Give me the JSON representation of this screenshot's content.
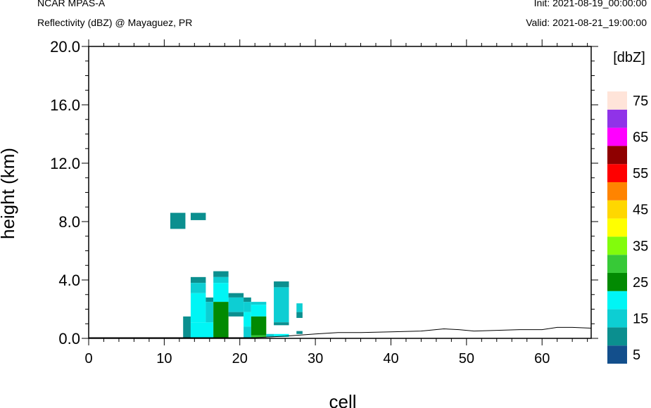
{
  "header": {
    "title": "NCAR MPAS-A",
    "subtitle": "Reflectivity (dBZ) @ Mayaguez, PR",
    "init": "Init: 2021-08-19_00:00:00",
    "valid": "Valid: 2021-08-21_19:00:00"
  },
  "chart_data": {
    "type": "heatmap",
    "xlabel": "cell",
    "ylabel": "height (km)",
    "xlim": [
      0,
      66.5
    ],
    "ylim": [
      0,
      20
    ],
    "x_ticks": [
      "0",
      "10",
      "20",
      "30",
      "40",
      "50",
      "60"
    ],
    "y_ticks": [
      "0.0",
      "4.0",
      "8.0",
      "12.0",
      "16.0",
      "20.0"
    ],
    "colorbar": {
      "unit_label": "[dbZ]",
      "levels": [
        0,
        5,
        10,
        15,
        20,
        25,
        30,
        35,
        40,
        45,
        50,
        55,
        60,
        65,
        70,
        75
      ],
      "tick_labels": [
        "5",
        "15",
        "25",
        "35",
        "45",
        "55",
        "65",
        "75"
      ],
      "colors": [
        "#134f8c",
        "#0b8f8f",
        "#0dced3",
        "#00f5f5",
        "#028a02",
        "#37c937",
        "#82fc0c",
        "#ffff00",
        "#ffd700",
        "#ff8400",
        "#ff0000",
        "#8f0000",
        "#ff00ff",
        "#9033e8",
        "#ffe4d9"
      ]
    },
    "terrain": [
      [
        0,
        0.05
      ],
      [
        12,
        0.05
      ],
      [
        22,
        0.05
      ],
      [
        26,
        0.15
      ],
      [
        30,
        0.3
      ],
      [
        33,
        0.4
      ],
      [
        36,
        0.4
      ],
      [
        40,
        0.45
      ],
      [
        44,
        0.5
      ],
      [
        47,
        0.65
      ],
      [
        49,
        0.6
      ],
      [
        51,
        0.5
      ],
      [
        54,
        0.55
      ],
      [
        57,
        0.6
      ],
      [
        60,
        0.6
      ],
      [
        62,
        0.75
      ],
      [
        64,
        0.75
      ],
      [
        66.5,
        0.7
      ]
    ],
    "cells": [
      {
        "x0": 10.8,
        "x1": 12.8,
        "y0": 7.5,
        "y1": 8.6,
        "dbz": 5
      },
      {
        "x0": 13.5,
        "x1": 15.5,
        "y0": 8.1,
        "y1": 8.6,
        "dbz": 5
      },
      {
        "x0": 12.5,
        "x1": 13.5,
        "y0": 0.05,
        "y1": 1.5,
        "dbz": 5
      },
      {
        "x0": 13.5,
        "x1": 15.5,
        "y0": 3.8,
        "y1": 4.2,
        "dbz": 5
      },
      {
        "x0": 13.5,
        "x1": 15.5,
        "y0": 3.1,
        "y1": 3.8,
        "dbz": 10
      },
      {
        "x0": 13.5,
        "x1": 15.5,
        "y0": 1.1,
        "y1": 3.1,
        "dbz": 15
      },
      {
        "x0": 13.5,
        "x1": 16.5,
        "y0": 0.05,
        "y1": 1.1,
        "dbz": 15
      },
      {
        "x0": 15.5,
        "x1": 16.5,
        "y0": 2.5,
        "y1": 2.8,
        "dbz": 5
      },
      {
        "x0": 15.5,
        "x1": 16.5,
        "y0": 1.1,
        "y1": 2.5,
        "dbz": 10
      },
      {
        "x0": 16.5,
        "x1": 18.5,
        "y0": 4.2,
        "y1": 4.6,
        "dbz": 5
      },
      {
        "x0": 16.5,
        "x1": 18.5,
        "y0": 3.8,
        "y1": 4.2,
        "dbz": 10
      },
      {
        "x0": 16.5,
        "x1": 18.5,
        "y0": 2.5,
        "y1": 3.8,
        "dbz": 15
      },
      {
        "x0": 16.5,
        "x1": 18.5,
        "y0": 0.05,
        "y1": 2.5,
        "dbz": 20
      },
      {
        "x0": 18.5,
        "x1": 20.5,
        "y0": 2.8,
        "y1": 3.1,
        "dbz": 5
      },
      {
        "x0": 18.5,
        "x1": 20.5,
        "y0": 1.8,
        "y1": 2.8,
        "dbz": 10
      },
      {
        "x0": 18.5,
        "x1": 20.5,
        "y0": 1.5,
        "y1": 1.8,
        "dbz": 5
      },
      {
        "x0": 20.5,
        "x1": 21.5,
        "y0": 2.5,
        "y1": 2.8,
        "dbz": 5
      },
      {
        "x0": 20.5,
        "x1": 21.5,
        "y0": 1.8,
        "y1": 2.5,
        "dbz": 10
      },
      {
        "x0": 20.5,
        "x1": 21.5,
        "y0": 0.8,
        "y1": 1.8,
        "dbz": 15
      },
      {
        "x0": 20.5,
        "x1": 21.5,
        "y0": 0.05,
        "y1": 0.8,
        "dbz": 10
      },
      {
        "x0": 21.5,
        "x1": 23.5,
        "y0": 2.3,
        "y1": 2.5,
        "dbz": 10
      },
      {
        "x0": 21.5,
        "x1": 23.5,
        "y0": 1.5,
        "y1": 2.3,
        "dbz": 15
      },
      {
        "x0": 21.5,
        "x1": 23.5,
        "y0": 0.2,
        "y1": 1.5,
        "dbz": 20
      },
      {
        "x0": 21.5,
        "x1": 23.5,
        "y0": 0.05,
        "y1": 0.2,
        "dbz": 25
      },
      {
        "x0": 23.5,
        "x1": 24.5,
        "y0": 0.1,
        "y1": 0.3,
        "dbz": 10
      },
      {
        "x0": 24.5,
        "x1": 26.5,
        "y0": 3.5,
        "y1": 3.9,
        "dbz": 5
      },
      {
        "x0": 24.5,
        "x1": 26.5,
        "y0": 1.1,
        "y1": 3.5,
        "dbz": 10
      },
      {
        "x0": 24.5,
        "x1": 26.5,
        "y0": 0.9,
        "y1": 1.1,
        "dbz": 5
      },
      {
        "x0": 24.5,
        "x1": 26.5,
        "y0": 0.1,
        "y1": 0.3,
        "dbz": 15
      },
      {
        "x0": 27.5,
        "x1": 28.3,
        "y0": 1.8,
        "y1": 2.4,
        "dbz": 10
      },
      {
        "x0": 27.5,
        "x1": 28.3,
        "y0": 1.4,
        "y1": 1.8,
        "dbz": 5
      },
      {
        "x0": 27.5,
        "x1": 28.3,
        "y0": 0.3,
        "y1": 0.5,
        "dbz": 5
      }
    ]
  }
}
